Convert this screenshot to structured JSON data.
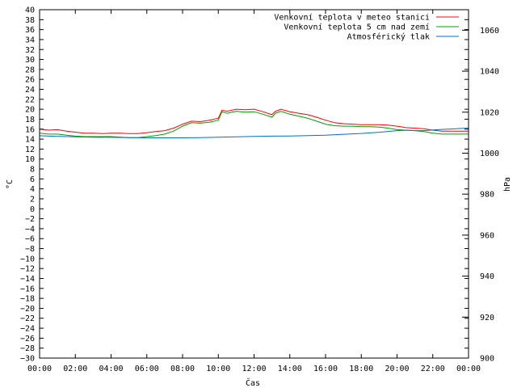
{
  "chart_data": {
    "type": "line",
    "xlabel": "Čas",
    "ylabel": "°C",
    "y2label": "hPa",
    "xlim": [
      0,
      24
    ],
    "ylim": [
      -30,
      40
    ],
    "y2lim": [
      900,
      1070
    ],
    "x_ticks": [
      "00:00",
      "02:00",
      "04:00",
      "06:00",
      "08:00",
      "10:00",
      "12:00",
      "14:00",
      "16:00",
      "18:00",
      "20:00",
      "22:00",
      "00:00"
    ],
    "y_ticks": [
      -30,
      -28,
      -26,
      -24,
      -22,
      -20,
      -18,
      -16,
      -14,
      -12,
      -10,
      -8,
      -6,
      -4,
      -2,
      0,
      2,
      4,
      6,
      8,
      10,
      12,
      14,
      16,
      18,
      20,
      22,
      24,
      26,
      28,
      30,
      32,
      34,
      36,
      38,
      40
    ],
    "y2_ticks": [
      900,
      920,
      940,
      960,
      980,
      1000,
      1020,
      1040,
      1060
    ],
    "grid": false,
    "legend_position": "top-right",
    "series": [
      {
        "name": "Venkovní teplota v meteo stanici",
        "color": "#ff0000",
        "axis": "y",
        "x": [
          0,
          0.5,
          1,
          1.5,
          2,
          2.5,
          3,
          3.5,
          4,
          4.5,
          5,
          5.5,
          6,
          6.5,
          7,
          7.5,
          8,
          8.5,
          9,
          9.5,
          10,
          10.2,
          10.5,
          11,
          11.5,
          12,
          12.5,
          13,
          13.2,
          13.5,
          14,
          14.5,
          15,
          15.5,
          16,
          16.5,
          17,
          17.5,
          18,
          18.5,
          19,
          19.5,
          20,
          20.5,
          21,
          21.5,
          22,
          22.5,
          23,
          23.5,
          24
        ],
        "values": [
          16.0,
          15.8,
          15.9,
          15.6,
          15.4,
          15.2,
          15.2,
          15.1,
          15.2,
          15.2,
          15.1,
          15.1,
          15.3,
          15.5,
          15.7,
          16.2,
          17.0,
          17.6,
          17.5,
          17.8,
          18.2,
          19.8,
          19.6,
          20.0,
          19.9,
          20.0,
          19.5,
          18.9,
          19.6,
          20.0,
          19.5,
          19.2,
          18.9,
          18.4,
          17.8,
          17.3,
          17.1,
          17.0,
          16.9,
          16.9,
          16.9,
          16.8,
          16.6,
          16.3,
          16.2,
          16.1,
          15.8,
          15.6,
          15.6,
          15.6,
          15.6
        ]
      },
      {
        "name": "Venkovní teplota 5 cm nad zemí",
        "color": "#00a000",
        "axis": "y",
        "x": [
          0,
          0.5,
          1,
          1.5,
          2,
          2.5,
          3,
          3.5,
          4,
          4.5,
          5,
          5.5,
          6,
          6.5,
          7,
          7.5,
          8,
          8.5,
          9,
          9.5,
          10,
          10.2,
          10.5,
          11,
          11.5,
          12,
          12.5,
          13,
          13.2,
          13.5,
          14,
          14.5,
          15,
          15.5,
          16,
          16.5,
          17,
          17.5,
          18,
          18.5,
          19,
          19.5,
          20,
          20.5,
          21,
          21.5,
          22,
          22.5,
          23,
          23.5,
          24
        ],
        "values": [
          15.2,
          15.0,
          15.0,
          14.8,
          14.6,
          14.5,
          14.5,
          14.5,
          14.5,
          14.4,
          14.3,
          14.3,
          14.5,
          14.7,
          15.0,
          15.6,
          16.6,
          17.3,
          17.2,
          17.4,
          17.8,
          19.5,
          19.2,
          19.6,
          19.4,
          19.5,
          19.0,
          18.4,
          19.2,
          19.6,
          19.0,
          18.6,
          18.2,
          17.6,
          17.0,
          16.7,
          16.6,
          16.6,
          16.5,
          16.5,
          16.4,
          16.2,
          15.9,
          15.8,
          15.7,
          15.5,
          15.2,
          15.0,
          15.0,
          15.0,
          15.0
        ]
      },
      {
        "name": "Atmosférický tlak",
        "color": "#0070c8",
        "axis": "y2",
        "x": [
          0,
          1,
          2,
          3,
          4,
          5,
          6,
          7,
          8,
          9,
          10,
          11,
          12,
          13,
          14,
          15,
          16,
          17,
          18,
          19,
          20,
          20.5,
          21,
          21.5,
          22,
          22.5,
          23,
          23.5,
          24
        ],
        "values": [
          1008.5,
          1008.2,
          1008.0,
          1007.8,
          1007.7,
          1007.6,
          1007.5,
          1007.5,
          1007.5,
          1007.6,
          1007.8,
          1008.0,
          1008.2,
          1008.3,
          1008.4,
          1008.6,
          1008.8,
          1009.2,
          1009.6,
          1010.2,
          1011.0,
          1011.2,
          1011.0,
          1011.0,
          1011.3,
          1011.6,
          1011.8,
          1012.0,
          1012.2
        ]
      }
    ]
  }
}
